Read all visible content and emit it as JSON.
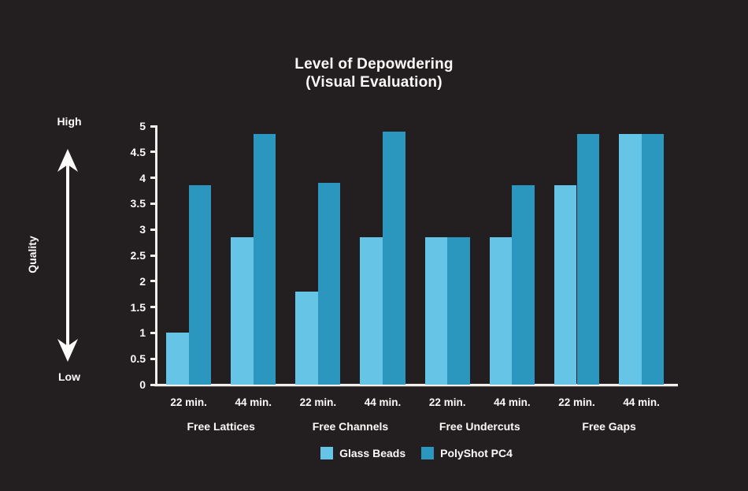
{
  "title": {
    "line1": "Level of Depowdering",
    "line2": "(Visual Evaluation)"
  },
  "y_axis": {
    "label": "Quality",
    "high_label": "High",
    "low_label": "Low",
    "ticks": [
      "5",
      "4.5",
      "4",
      "3.5",
      "3",
      "2.5",
      "2",
      "1.5",
      "1",
      "0.5",
      "0"
    ]
  },
  "chart_data": {
    "type": "bar",
    "title": "Level of Depowdering (Visual Evaluation)",
    "ylabel": "Quality",
    "xlabel": "",
    "ylim": [
      0,
      5
    ],
    "y_tick_step": 0.5,
    "grid": false,
    "legend_position": "bottom",
    "groups": [
      "Free Lattices",
      "Free Channels",
      "Free Undercuts",
      "Free Gaps"
    ],
    "sub_categories": [
      "22 min.",
      "44 min."
    ],
    "series": [
      {
        "name": "Glass Beads",
        "color": "#66c4e6",
        "values": [
          1.0,
          2.85,
          1.8,
          2.85,
          2.85,
          2.85,
          3.85,
          4.85
        ]
      },
      {
        "name": "PolyShot PC4",
        "color": "#2b96be",
        "values": [
          3.85,
          4.85,
          3.9,
          4.9,
          2.85,
          3.85,
          4.85,
          4.85
        ]
      }
    ]
  },
  "legend": {
    "items": [
      {
        "label": "Glass Beads",
        "color": "#66c4e6"
      },
      {
        "label": "PolyShot PC4",
        "color": "#2b96be"
      }
    ]
  },
  "colors": {
    "background": "#231f20",
    "text": "#ffffff",
    "axis": "#f2efed",
    "glass_beads": "#66c4e6",
    "polyshot_pc4": "#2b96be"
  }
}
